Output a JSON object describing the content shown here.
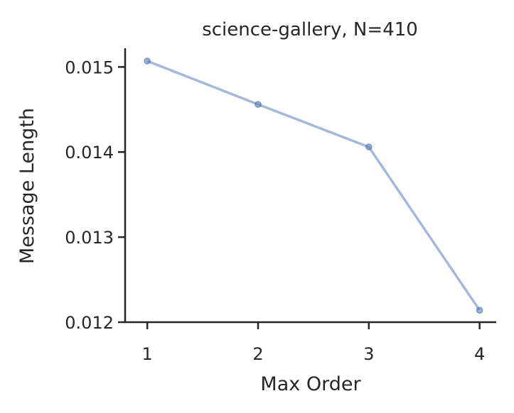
{
  "chart_data": {
    "type": "line",
    "title": "science-gallery, N=410",
    "xlabel": "Max Order",
    "ylabel": "Message Length",
    "x": [
      1,
      2,
      3,
      4
    ],
    "x_ticks": [
      "1",
      "2",
      "3",
      "4"
    ],
    "y_ticks": [
      "0.012",
      "0.013",
      "0.014",
      "0.015"
    ],
    "xlim": [
      0.8,
      4.15
    ],
    "ylim": [
      0.012,
      0.01522
    ],
    "grid": false,
    "series": [
      {
        "values": [
          0.01507,
          0.01456,
          0.01406,
          0.01214
        ],
        "color": "#4c72b0"
      }
    ]
  }
}
